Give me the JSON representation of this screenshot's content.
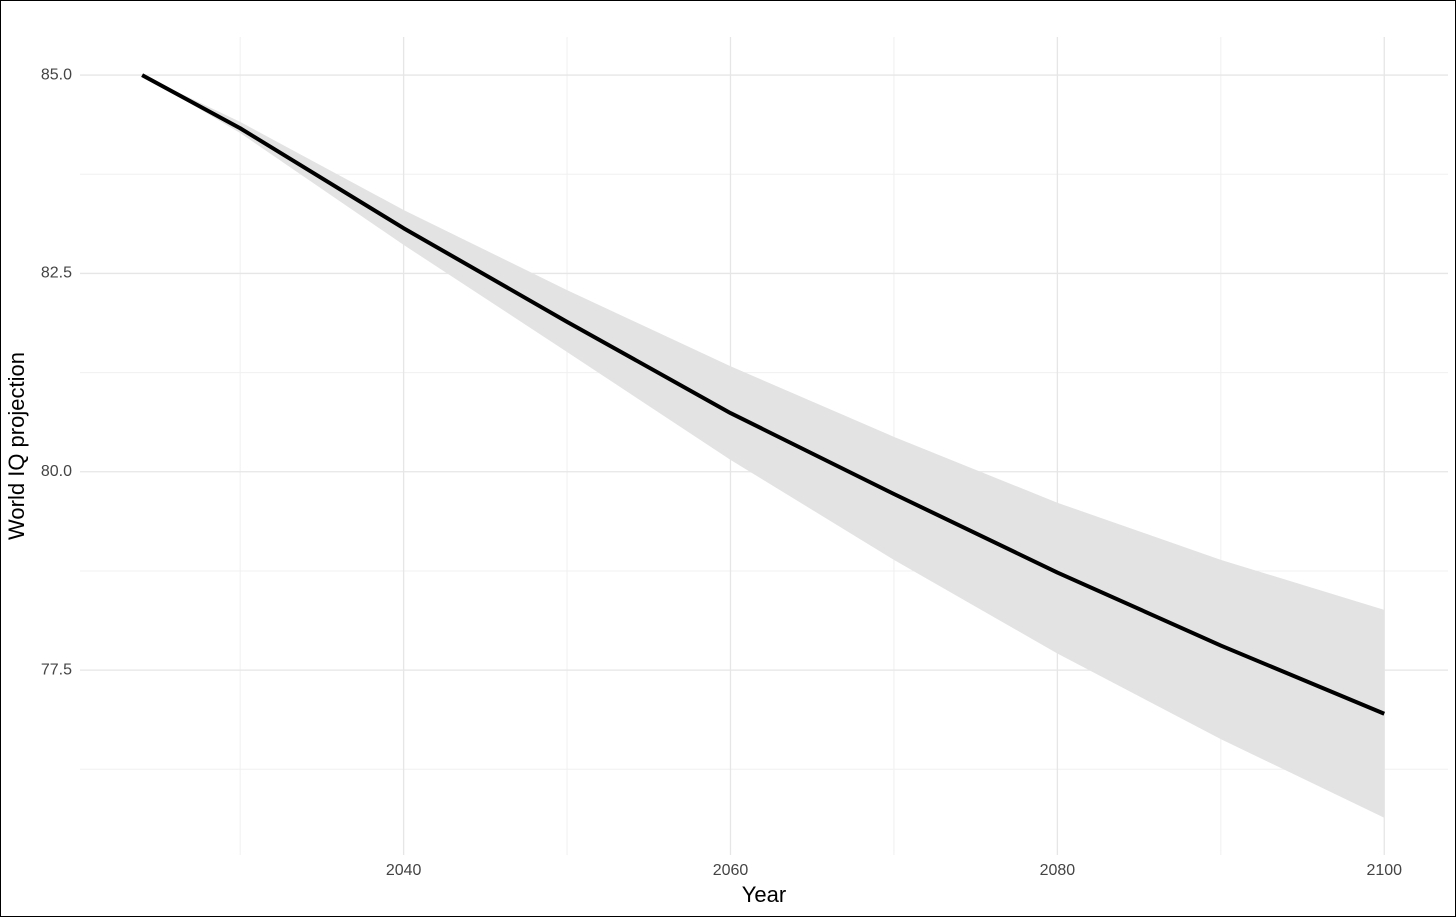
{
  "chart_data": {
    "type": "line",
    "x_label": "Year",
    "y_label": "World IQ projection",
    "x": [
      2024,
      2030,
      2040,
      2050,
      2060,
      2070,
      2080,
      2090,
      2100
    ],
    "values": [
      85.0,
      84.33,
      83.07,
      81.89,
      80.74,
      79.72,
      78.73,
      77.81,
      76.95
    ],
    "upper": [
      85.0,
      84.41,
      83.3,
      82.29,
      81.33,
      80.44,
      79.61,
      78.89,
      78.26
    ],
    "lower": [
      85.0,
      84.27,
      82.86,
      81.51,
      80.15,
      78.89,
      77.71,
      76.63,
      75.64
    ],
    "color": "#000000",
    "band_color": "#e3e3e3",
    "xlim": [
      2020.2,
      2103.9
    ],
    "ylim": [
      75.17,
      85.48
    ],
    "xticks": [
      2040,
      2060,
      2080,
      2100
    ],
    "x_minor_ticks": [
      2030,
      2050,
      2070,
      2090
    ],
    "yticks": [
      {
        "value": 77.5,
        "label": "77.5"
      },
      {
        "value": 80,
        "label": "80.0"
      },
      {
        "value": 82.5,
        "label": "82.5"
      },
      {
        "value": 85,
        "label": "85.0"
      }
    ],
    "y_minor_ticks": [
      76.25,
      78.75,
      81.25,
      83.75
    ],
    "grid": true
  }
}
